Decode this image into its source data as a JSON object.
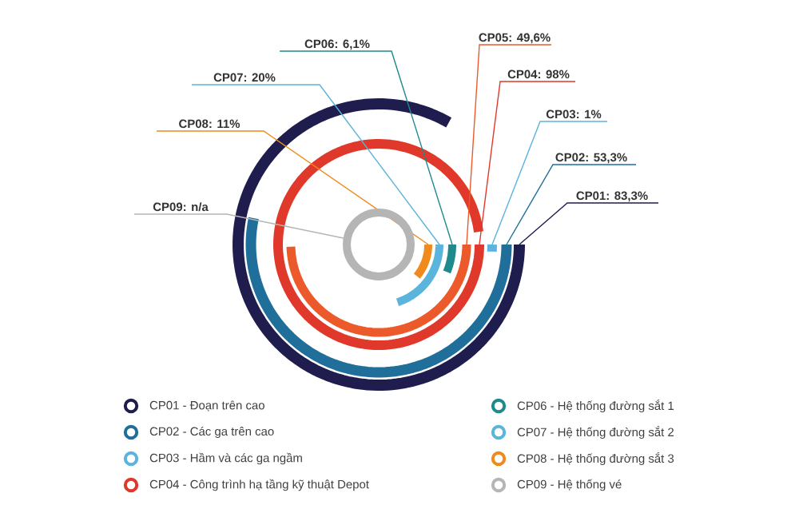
{
  "chart_data": {
    "type": "other",
    "legend": "bottom",
    "categories": [
      "CP01",
      "CP02",
      "CP03",
      "CP04",
      "CP05",
      "CP06",
      "CP07",
      "CP08",
      "CP09"
    ],
    "series": [
      {
        "name": "CP01 - Đoạn trên cao",
        "color": "#1f1d4e",
        "values": [
          83.3,
          null,
          null,
          null,
          null,
          null,
          null,
          null,
          null
        ],
        "value_labels": [
          ": 83,3%",
          null,
          null,
          null,
          null,
          null,
          null,
          null,
          null
        ]
      },
      {
        "name": "CP02 - Các ga trên cao",
        "color": "#1f6f9a",
        "values": [
          null,
          53.3,
          null,
          null,
          null,
          null,
          null,
          null,
          null
        ],
        "value_labels": [
          null,
          ": 53,3%",
          null,
          null,
          null,
          null,
          null,
          null,
          null
        ]
      },
      {
        "name": "CP03 - Hầm và các ga ngầm",
        "color": "#5bb4e0",
        "values": [
          null,
          null,
          1,
          null,
          null,
          null,
          null,
          null,
          null
        ],
        "value_labels": [
          null,
          null,
          ": 1%",
          null,
          null,
          null,
          null,
          null,
          null
        ]
      },
      {
        "name": "CP04 - Công trình hạ tầng kỹ thuật Depot",
        "color": "#e0382a",
        "values": [
          null,
          null,
          null,
          98,
          null,
          null,
          null,
          null,
          null
        ],
        "value_labels": [
          null,
          null,
          null,
          ": 98%",
          null,
          null,
          null,
          null,
          null
        ]
      },
      {
        "color": "#ec5a2c",
        "values": [
          null,
          null,
          null,
          null,
          49.6,
          null,
          null,
          null,
          null
        ],
        "value_labels": [
          null,
          null,
          null,
          null,
          ": 49,6%",
          null,
          null,
          null,
          null
        ]
      },
      {
        "name": "CP06 - Hệ thống đường sắt 1",
        "color": "#1f8a8c",
        "values": [
          null,
          null,
          null,
          null,
          null,
          6.1,
          null,
          null,
          null
        ],
        "value_labels": [
          null,
          null,
          null,
          null,
          null,
          ": 6,1%",
          null,
          null,
          null
        ]
      },
      {
        "name": "CP07 - Hệ thống đường sắt 2",
        "color": "#5ab4db",
        "values": [
          null,
          null,
          null,
          null,
          null,
          null,
          20,
          null,
          null
        ],
        "value_labels": [
          null,
          null,
          null,
          null,
          null,
          null,
          ": 20%",
          null,
          null
        ]
      },
      {
        "name": "CP08 - Hệ thống đường sắt 3",
        "color": "#f08a1c",
        "values": [
          null,
          null,
          null,
          null,
          null,
          null,
          null,
          11,
          null
        ],
        "value_labels": [
          null,
          null,
          null,
          null,
          null,
          null,
          null,
          ": 11%",
          null
        ]
      },
      {
        "name": "CP09 - Hệ thống vé",
        "color": "#b5b5b5",
        "values": [
          null,
          null,
          null,
          null,
          null,
          null,
          null,
          null,
          null
        ],
        "value_labels": [
          null,
          null,
          null,
          null,
          null,
          null,
          null,
          null,
          ": n/a"
        ]
      }
    ]
  }
}
